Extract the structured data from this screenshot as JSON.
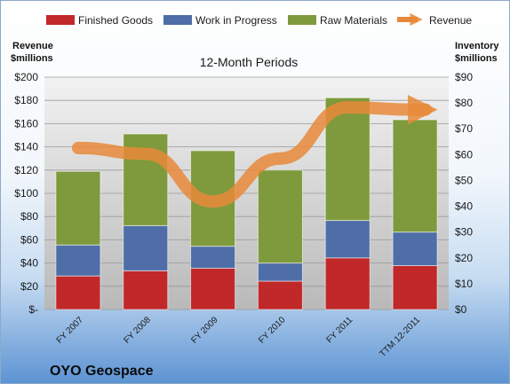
{
  "chart_data": {
    "type": "bar",
    "subtitle": "12-Month Periods",
    "company": "OYO Geospace",
    "categories": [
      "FY 2007",
      "FY 2008",
      "FY 2009",
      "FY 2010",
      "FY 2011",
      "TTM 12-2011"
    ],
    "left_axis": {
      "label_lines": [
        "Revenue",
        "$millions"
      ],
      "ylim": [
        0,
        200
      ],
      "ticks": [
        "$-",
        "$20",
        "$40",
        "$60",
        "$80",
        "$100",
        "$120",
        "$140",
        "$160",
        "$180",
        "$200"
      ]
    },
    "right_axis": {
      "label_lines": [
        "Inventory",
        "$millions"
      ],
      "ylim": [
        0,
        90
      ],
      "ticks": [
        "$0",
        "$10",
        "$20",
        "$30",
        "$40",
        "$50",
        "$60",
        "$70",
        "$80",
        "$90"
      ]
    },
    "series": [
      {
        "name": "Finished Goods",
        "axis": "right",
        "kind": "stacked-bar",
        "color": "#C0282A",
        "values": [
          13,
          15,
          16,
          11,
          20,
          17
        ]
      },
      {
        "name": "Work in Progress",
        "axis": "right",
        "kind": "stacked-bar",
        "color": "#4F6EA8",
        "values": [
          12,
          17.5,
          8.5,
          7,
          14.5,
          13
        ]
      },
      {
        "name": "Raw Materials",
        "axis": "right",
        "kind": "stacked-bar",
        "color": "#7E9A3C",
        "values": [
          28.5,
          35.5,
          37,
          36,
          47.5,
          43.5
        ]
      },
      {
        "name": "Revenue",
        "axis": "left",
        "kind": "line-arrow",
        "color": "#E8893A",
        "values": [
          139,
          134,
          93,
          130,
          174,
          172
        ]
      }
    ],
    "legend_position": "top",
    "grid": true
  }
}
